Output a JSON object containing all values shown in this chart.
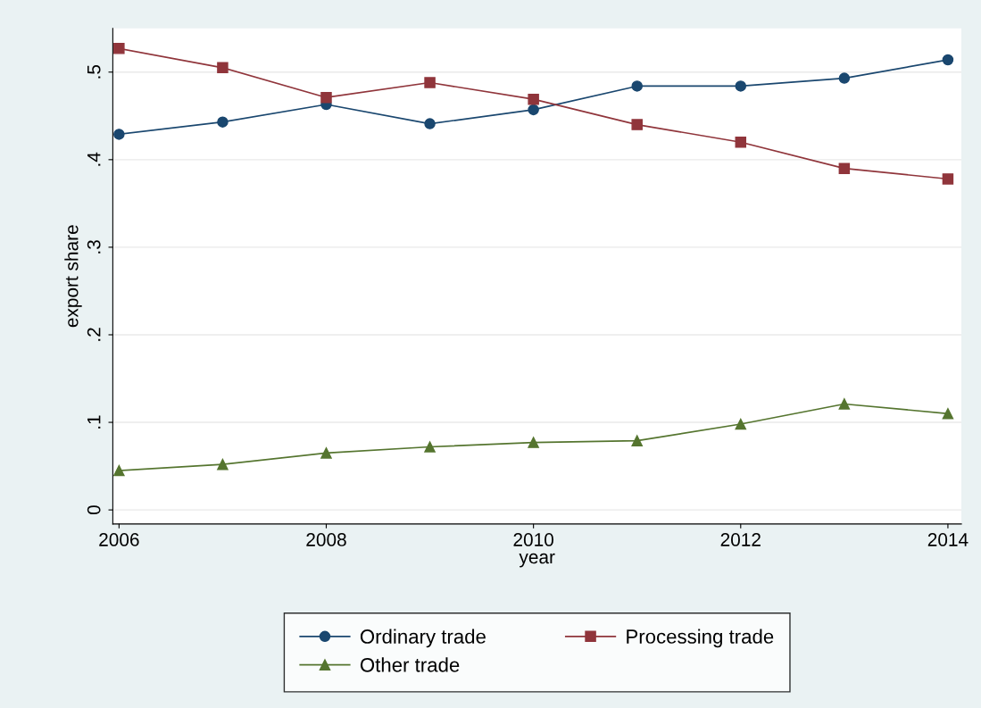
{
  "chart_data": {
    "type": "line",
    "xlabel": "year",
    "ylabel": "export share",
    "x": [
      2006,
      2007,
      2008,
      2009,
      2010,
      2011,
      2012,
      2013,
      2014
    ],
    "series": [
      {
        "name": "Ordinary trade",
        "color": "#1a476f",
        "marker": "circle",
        "values": [
          0.429,
          0.443,
          0.463,
          0.441,
          0.457,
          0.484,
          0.484,
          0.493,
          0.514
        ]
      },
      {
        "name": "Processing trade",
        "color": "#90353b",
        "marker": "square",
        "values": [
          0.527,
          0.505,
          0.471,
          0.488,
          0.469,
          0.44,
          0.42,
          0.39,
          0.378
        ]
      },
      {
        "name": "Other trade",
        "color": "#55752f",
        "marker": "triangle",
        "values": [
          0.045,
          0.052,
          0.065,
          0.072,
          0.077,
          0.079,
          0.098,
          0.121,
          0.11
        ]
      }
    ],
    "xlim": [
      2005.94,
      2014.13
    ],
    "xticks": [
      2006,
      2008,
      2010,
      2012,
      2014
    ],
    "ylim": [
      -0.016,
      0.55
    ],
    "yticks": [
      0,
      {
        "value": 0.1,
        "label": ".1"
      },
      {
        "value": 0.2,
        "label": ".2"
      },
      {
        "value": 0.3,
        "label": ".3"
      },
      {
        "value": 0.4,
        "label": ".4"
      },
      {
        "value": 0.5,
        "label": ".5"
      }
    ],
    "grid": "y",
    "legend": "bottom",
    "line_style": "solid"
  }
}
